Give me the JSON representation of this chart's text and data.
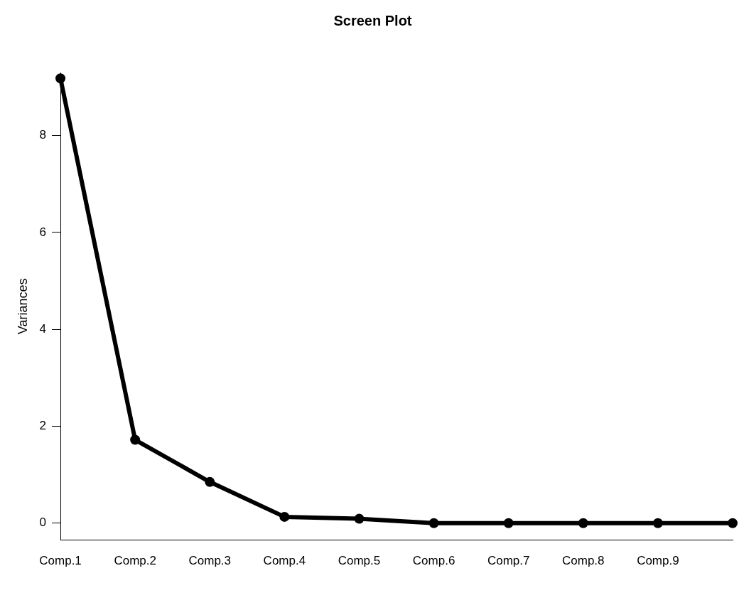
{
  "chart_data": {
    "type": "line",
    "title": "Screen Plot",
    "ylabel": "Variances",
    "categories": [
      "Comp.1",
      "Comp.2",
      "Comp.3",
      "Comp.4",
      "Comp.5",
      "Comp.6",
      "Comp.7",
      "Comp.8",
      "Comp.9",
      null
    ],
    "series": [
      {
        "color": "#000000",
        "values": [
          9.18,
          1.72,
          0.85,
          0.13,
          0.09,
          0,
          0,
          0,
          0,
          0
        ]
      }
    ],
    "ylim": [
      -0.35,
      9.3
    ],
    "yticks": [
      0,
      2,
      4,
      6,
      8
    ],
    "grid": false,
    "legend": false,
    "marker": "circle",
    "line_style": "solid"
  }
}
